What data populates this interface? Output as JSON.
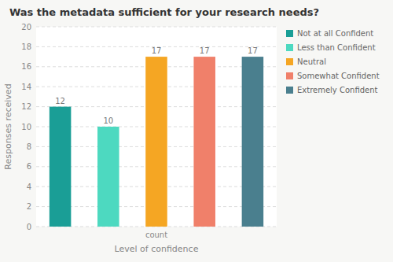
{
  "chart_data": {
    "type": "bar",
    "title": "Was the metadata sufficient for your research needs?",
    "categories": [
      "Not at all Confident",
      "Less than Confident",
      "Neutral",
      "Somewhat Confident",
      "Extremely Confident"
    ],
    "values": [
      12,
      10,
      17,
      17,
      17
    ],
    "colors": [
      "#1a9e96",
      "#4dd9c0",
      "#f5a623",
      "#f0806a",
      "#4a7f8e"
    ],
    "xlabel": "Level of confidence",
    "ylabel": "Responses received",
    "annotations": [
      "count"
    ],
    "ylim": [
      0,
      20
    ],
    "yticks": [
      0,
      2,
      4,
      6,
      8,
      10,
      12,
      14,
      16,
      18,
      20
    ],
    "grid": true,
    "data_labels": true,
    "legend": "right"
  }
}
